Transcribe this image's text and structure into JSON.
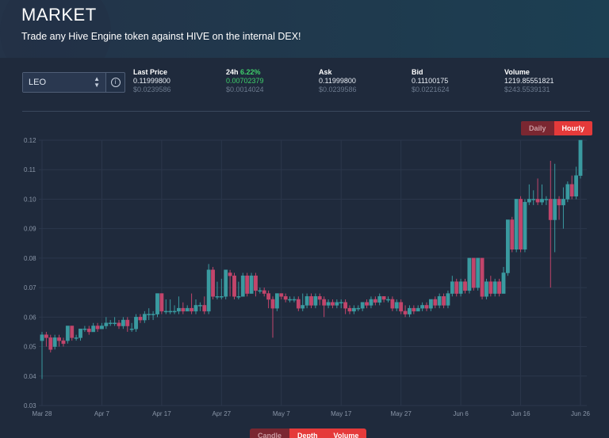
{
  "header": {
    "title": "MARKET",
    "subtitle": "Trade any Hive Engine token against HIVE on the internal DEX!"
  },
  "token_select": {
    "value": "LEO",
    "info_icon": "info-circle-icon"
  },
  "stats": {
    "last_price": {
      "label": "Last Price",
      "value": "0.11999800",
      "usd": "$0.0239586"
    },
    "change_24h": {
      "label": "24h",
      "pct": "6.22%",
      "value": "0.00702379",
      "usd": "$0.0014024"
    },
    "ask": {
      "label": "Ask",
      "value": "0.11999800",
      "usd": "$0.0239586"
    },
    "bid": {
      "label": "Bid",
      "value": "0.11100175",
      "usd": "$0.0221624"
    },
    "volume": {
      "label": "Volume",
      "value": "1219.85551821",
      "usd": "$243.5539131"
    }
  },
  "interval_toggle": {
    "daily": "Daily",
    "hourly": "Hourly",
    "selected": "Hourly"
  },
  "bottom_tabs": {
    "candle": "Candle",
    "depth": "Depth",
    "volume": "Volume"
  },
  "colors": {
    "up": "#3a9aa0",
    "down": "#c2456b",
    "bg": "#1f2a3c",
    "accent": "#e53a3a"
  },
  "chart_data": {
    "type": "candlestick",
    "ylim": [
      0.03,
      0.12
    ],
    "y_ticks": [
      "0.12",
      "0.11",
      "0.10",
      "0.09",
      "0.08",
      "0.07",
      "0.06",
      "0.05",
      "0.04",
      "0.03"
    ],
    "x_ticks": [
      "Mar 28",
      "Apr 7",
      "Apr 17",
      "Apr 27",
      "May 7",
      "May 17",
      "May 27",
      "Jun 6",
      "Jun 16",
      "Jun 26"
    ],
    "candles": [
      [
        0.052,
        0.054,
        0.039,
        0.055
      ],
      [
        0.054,
        0.053,
        0.05,
        0.055
      ],
      [
        0.053,
        0.049,
        0.048,
        0.054
      ],
      [
        0.05,
        0.053,
        0.049,
        0.054
      ],
      [
        0.053,
        0.052,
        0.05,
        0.054
      ],
      [
        0.052,
        0.051,
        0.05,
        0.053
      ],
      [
        0.052,
        0.057,
        0.051,
        0.057
      ],
      [
        0.057,
        0.053,
        0.052,
        0.057
      ],
      [
        0.053,
        0.053,
        0.052,
        0.054
      ],
      [
        0.053,
        0.056,
        0.052,
        0.056
      ],
      [
        0.056,
        0.056,
        0.055,
        0.057
      ],
      [
        0.056,
        0.055,
        0.054,
        0.057
      ],
      [
        0.055,
        0.057,
        0.055,
        0.058
      ],
      [
        0.057,
        0.056,
        0.055,
        0.058
      ],
      [
        0.056,
        0.057,
        0.056,
        0.058
      ],
      [
        0.057,
        0.058,
        0.056,
        0.06
      ],
      [
        0.058,
        0.058,
        0.057,
        0.059
      ],
      [
        0.058,
        0.058,
        0.057,
        0.06
      ],
      [
        0.058,
        0.057,
        0.056,
        0.059
      ],
      [
        0.057,
        0.059,
        0.056,
        0.06
      ],
      [
        0.059,
        0.057,
        0.055,
        0.06
      ],
      [
        0.056,
        0.056,
        0.055,
        0.058
      ],
      [
        0.056,
        0.06,
        0.055,
        0.061
      ],
      [
        0.06,
        0.059,
        0.058,
        0.061
      ],
      [
        0.059,
        0.061,
        0.058,
        0.062
      ],
      [
        0.061,
        0.061,
        0.059,
        0.063
      ],
      [
        0.061,
        0.061,
        0.059,
        0.062
      ],
      [
        0.061,
        0.068,
        0.06,
        0.068
      ],
      [
        0.068,
        0.062,
        0.061,
        0.068
      ],
      [
        0.062,
        0.062,
        0.061,
        0.066
      ],
      [
        0.062,
        0.062,
        0.061,
        0.066
      ],
      [
        0.062,
        0.062,
        0.061,
        0.064
      ],
      [
        0.062,
        0.063,
        0.061,
        0.067
      ],
      [
        0.063,
        0.062,
        0.061,
        0.065
      ],
      [
        0.062,
        0.063,
        0.062,
        0.064
      ],
      [
        0.063,
        0.062,
        0.061,
        0.068
      ],
      [
        0.062,
        0.064,
        0.061,
        0.066
      ],
      [
        0.064,
        0.064,
        0.062,
        0.065
      ],
      [
        0.064,
        0.062,
        0.061,
        0.067
      ],
      [
        0.062,
        0.076,
        0.061,
        0.078
      ],
      [
        0.076,
        0.067,
        0.066,
        0.077
      ],
      [
        0.067,
        0.067,
        0.066,
        0.072
      ],
      [
        0.067,
        0.067,
        0.066,
        0.073
      ],
      [
        0.067,
        0.076,
        0.066,
        0.076
      ],
      [
        0.075,
        0.074,
        0.067,
        0.076
      ],
      [
        0.074,
        0.067,
        0.066,
        0.075
      ],
      [
        0.067,
        0.067,
        0.066,
        0.072
      ],
      [
        0.067,
        0.074,
        0.067,
        0.075
      ],
      [
        0.074,
        0.068,
        0.067,
        0.075
      ],
      [
        0.068,
        0.074,
        0.068,
        0.075
      ],
      [
        0.074,
        0.069,
        0.067,
        0.075
      ],
      [
        0.069,
        0.069,
        0.068,
        0.07
      ],
      [
        0.069,
        0.068,
        0.067,
        0.07
      ],
      [
        0.068,
        0.066,
        0.063,
        0.069
      ],
      [
        0.066,
        0.063,
        0.053,
        0.067
      ],
      [
        0.063,
        0.068,
        0.062,
        0.068
      ],
      [
        0.068,
        0.067,
        0.066,
        0.068
      ],
      [
        0.067,
        0.066,
        0.065,
        0.068
      ],
      [
        0.066,
        0.066,
        0.065,
        0.067
      ],
      [
        0.066,
        0.066,
        0.065,
        0.067
      ],
      [
        0.066,
        0.063,
        0.062,
        0.067
      ],
      [
        0.063,
        0.064,
        0.062,
        0.068
      ],
      [
        0.064,
        0.067,
        0.063,
        0.068
      ],
      [
        0.067,
        0.064,
        0.063,
        0.068
      ],
      [
        0.064,
        0.067,
        0.063,
        0.068
      ],
      [
        0.067,
        0.066,
        0.064,
        0.068
      ],
      [
        0.066,
        0.064,
        0.06,
        0.067
      ],
      [
        0.064,
        0.065,
        0.063,
        0.066
      ],
      [
        0.065,
        0.064,
        0.063,
        0.066
      ],
      [
        0.064,
        0.065,
        0.063,
        0.066
      ],
      [
        0.065,
        0.065,
        0.063,
        0.066
      ],
      [
        0.065,
        0.063,
        0.061,
        0.066
      ],
      [
        0.063,
        0.062,
        0.061,
        0.064
      ],
      [
        0.062,
        0.063,
        0.061,
        0.064
      ],
      [
        0.063,
        0.063,
        0.062,
        0.064
      ],
      [
        0.063,
        0.065,
        0.062,
        0.065
      ],
      [
        0.065,
        0.064,
        0.063,
        0.066
      ],
      [
        0.064,
        0.066,
        0.063,
        0.067
      ],
      [
        0.066,
        0.065,
        0.064,
        0.067
      ],
      [
        0.065,
        0.067,
        0.064,
        0.068
      ],
      [
        0.067,
        0.066,
        0.065,
        0.067
      ],
      [
        0.066,
        0.066,
        0.065,
        0.067
      ],
      [
        0.066,
        0.063,
        0.062,
        0.067
      ],
      [
        0.063,
        0.065,
        0.062,
        0.066
      ],
      [
        0.065,
        0.062,
        0.061,
        0.066
      ],
      [
        0.062,
        0.061,
        0.06,
        0.064
      ],
      [
        0.061,
        0.063,
        0.06,
        0.064
      ],
      [
        0.063,
        0.062,
        0.061,
        0.064
      ],
      [
        0.062,
        0.063,
        0.062,
        0.064
      ],
      [
        0.063,
        0.064,
        0.062,
        0.065
      ],
      [
        0.064,
        0.063,
        0.062,
        0.065
      ],
      [
        0.063,
        0.066,
        0.062,
        0.066
      ],
      [
        0.066,
        0.064,
        0.063,
        0.067
      ],
      [
        0.064,
        0.067,
        0.063,
        0.068
      ],
      [
        0.067,
        0.064,
        0.063,
        0.068
      ],
      [
        0.064,
        0.068,
        0.063,
        0.069
      ],
      [
        0.068,
        0.072,
        0.067,
        0.074
      ],
      [
        0.072,
        0.068,
        0.067,
        0.073
      ],
      [
        0.068,
        0.072,
        0.067,
        0.073
      ],
      [
        0.072,
        0.069,
        0.068,
        0.073
      ],
      [
        0.069,
        0.08,
        0.068,
        0.08
      ],
      [
        0.08,
        0.07,
        0.069,
        0.08
      ],
      [
        0.07,
        0.08,
        0.069,
        0.08
      ],
      [
        0.08,
        0.067,
        0.066,
        0.08
      ],
      [
        0.067,
        0.072,
        0.066,
        0.073
      ],
      [
        0.072,
        0.068,
        0.067,
        0.074
      ],
      [
        0.068,
        0.072,
        0.067,
        0.073
      ],
      [
        0.072,
        0.068,
        0.067,
        0.073
      ],
      [
        0.068,
        0.075,
        0.068,
        0.077
      ],
      [
        0.075,
        0.093,
        0.074,
        0.093
      ],
      [
        0.093,
        0.083,
        0.082,
        0.094
      ],
      [
        0.083,
        0.1,
        0.082,
        0.1
      ],
      [
        0.1,
        0.083,
        0.082,
        0.101
      ],
      [
        0.083,
        0.099,
        0.082,
        0.1
      ],
      [
        0.099,
        0.1,
        0.098,
        0.105
      ],
      [
        0.1,
        0.1,
        0.098,
        0.103
      ],
      [
        0.1,
        0.099,
        0.098,
        0.107
      ],
      [
        0.099,
        0.1,
        0.098,
        0.105
      ],
      [
        0.1,
        0.1,
        0.098,
        0.101
      ],
      [
        0.1,
        0.093,
        0.07,
        0.113
      ],
      [
        0.093,
        0.1,
        0.082,
        0.112
      ],
      [
        0.1,
        0.098,
        0.093,
        0.101
      ],
      [
        0.098,
        0.1,
        0.09,
        0.104
      ],
      [
        0.1,
        0.105,
        0.099,
        0.106
      ],
      [
        0.105,
        0.101,
        0.1,
        0.108
      ],
      [
        0.101,
        0.108,
        0.1,
        0.111
      ],
      [
        0.108,
        0.12,
        0.107,
        0.12
      ]
    ]
  }
}
